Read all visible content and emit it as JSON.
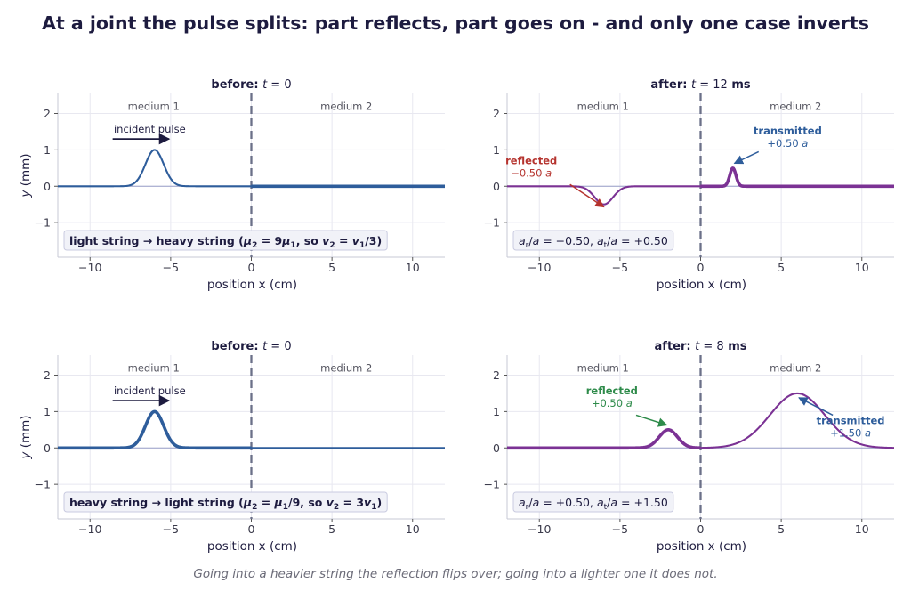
{
  "title": "At a joint the pulse splits:  part reflects, part goes on - and only one case inverts",
  "caption": "Going into a heavier string the reflection flips over;  going into a lighter one it does not.",
  "colors": {
    "incident": "#2e5d9b",
    "pulse_after": "#7b3294",
    "reflected_inverted": "#b5332e",
    "reflected_upright": "#2e8b4a",
    "transmitted": "#2e5d9b",
    "joint": "#6b7088",
    "grid": "#e8e8f0",
    "baseline": "#9aa0c8",
    "box_bg": "#f1f2f8",
    "box_border": "#c9cbe0"
  },
  "chart_data": [
    {
      "id": "top-left",
      "type": "line",
      "title_bold": "before:",
      "title_math": "t = 0",
      "xlabel": "position  x  (cm)",
      "ylabel": "y  (mm)",
      "xlim": [
        -12,
        12
      ],
      "ylim": [
        -1.95,
        2.55
      ],
      "xticks": [
        -10,
        -5,
        0,
        5,
        10
      ],
      "yticks": [
        -1,
        0,
        1,
        2
      ],
      "tick_labels_x": [
        "−10",
        "−5",
        "0",
        "5",
        "10"
      ],
      "tick_labels_y": [
        "−1",
        "0",
        "1",
        "2"
      ],
      "grid": true,
      "joint_x": 0,
      "medium_labels": [
        {
          "text": "medium 1",
          "x": -6
        },
        {
          "text": "medium 2",
          "x": 6
        }
      ],
      "string_widths": {
        "left": "thin",
        "right": "thick"
      },
      "series": [
        {
          "kind": "pulse",
          "center": -6,
          "amplitude": 1.0,
          "width": 0.8,
          "color": "incident"
        }
      ],
      "annotations": [
        {
          "text": "incident pulse",
          "x": -6.3,
          "y": 1.57,
          "arrow_from": [
            -8.6,
            1.3
          ],
          "arrow_to": [
            -5.1,
            1.3
          ]
        }
      ],
      "info_box": {
        "parts": [
          {
            "t": "light string  →  heavy string   (",
            "s": "b"
          },
          {
            "t": "μ",
            "s": "bi"
          },
          {
            "t": "2",
            "s": "sub"
          },
          {
            "t": " = 9",
            "s": "b"
          },
          {
            "t": "μ",
            "s": "bi"
          },
          {
            "t": "1",
            "s": "sub"
          },
          {
            "t": ", so ",
            "s": "b"
          },
          {
            "t": "v",
            "s": "bi"
          },
          {
            "t": "2",
            "s": "sub"
          },
          {
            "t": " = ",
            "s": "b"
          },
          {
            "t": "v",
            "s": "bi"
          },
          {
            "t": "1",
            "s": "sub"
          },
          {
            "t": "/3)",
            "s": "b"
          }
        ]
      }
    },
    {
      "id": "top-right",
      "type": "line",
      "title_bold": "after:",
      "title_math": "t = 12",
      "title_suffix": "ms",
      "xlabel": "position  x  (cm)",
      "ylabel": "",
      "xlim": [
        -12,
        12
      ],
      "ylim": [
        -1.95,
        2.55
      ],
      "xticks": [
        -10,
        -5,
        0,
        5,
        10
      ],
      "yticks": [
        -1,
        0,
        1,
        2
      ],
      "tick_labels_x": [
        "−10",
        "−5",
        "0",
        "5",
        "10"
      ],
      "tick_labels_y": [
        "−1",
        "0",
        "1",
        "2"
      ],
      "grid": true,
      "joint_x": 0,
      "medium_labels": [
        {
          "text": "medium 1",
          "x": -6
        },
        {
          "text": "medium 2",
          "x": 6
        }
      ],
      "string_widths": {
        "left": "thin",
        "right": "thick"
      },
      "series": [
        {
          "kind": "pulse",
          "center": -6,
          "amplitude": -0.5,
          "width": 0.8,
          "color": "pulse_after",
          "region": "left"
        },
        {
          "kind": "pulse",
          "center": 2,
          "amplitude": 0.5,
          "width": 0.27,
          "color": "pulse_after",
          "region": "right"
        }
      ],
      "annotations": [
        {
          "title": "reflected",
          "value": "−0.50 ",
          "value_unit": "a",
          "x": -10.5,
          "y": 0.6,
          "color": "reflected_inverted",
          "arrow_from": [
            -8.1,
            0.05
          ],
          "arrow_to": [
            -6.0,
            -0.57
          ]
        },
        {
          "title": "transmitted",
          "value": "+0.50 ",
          "value_unit": "a",
          "x": 5.4,
          "y": 1.43,
          "color": "transmitted",
          "arrow_from": [
            3.6,
            0.95
          ],
          "arrow_to": [
            2.1,
            0.63
          ]
        }
      ],
      "info_box": {
        "parts": [
          {
            "t": "a",
            "s": "i"
          },
          {
            "t": "r",
            "s": "sub"
          },
          {
            "t": "/",
            "s": "n"
          },
          {
            "t": "a",
            "s": "i"
          },
          {
            "t": " = −0.50,      ",
            "s": "n"
          },
          {
            "t": "a",
            "s": "i"
          },
          {
            "t": "t",
            "s": "sub"
          },
          {
            "t": "/",
            "s": "n"
          },
          {
            "t": "a",
            "s": "i"
          },
          {
            "t": " = +0.50",
            "s": "n"
          }
        ]
      }
    },
    {
      "id": "bottom-left",
      "type": "line",
      "title_bold": "before:",
      "title_math": "t = 0",
      "xlabel": "position  x  (cm)",
      "ylabel": "y  (mm)",
      "xlim": [
        -12,
        12
      ],
      "ylim": [
        -1.95,
        2.55
      ],
      "xticks": [
        -10,
        -5,
        0,
        5,
        10
      ],
      "yticks": [
        -1,
        0,
        1,
        2
      ],
      "tick_labels_x": [
        "−10",
        "−5",
        "0",
        "5",
        "10"
      ],
      "tick_labels_y": [
        "−1",
        "0",
        "1",
        "2"
      ],
      "grid": true,
      "joint_x": 0,
      "medium_labels": [
        {
          "text": "medium 1",
          "x": -6
        },
        {
          "text": "medium 2",
          "x": 6
        }
      ],
      "string_widths": {
        "left": "thick",
        "right": "thin"
      },
      "series": [
        {
          "kind": "pulse",
          "center": -6,
          "amplitude": 1.0,
          "width": 0.8,
          "color": "incident"
        }
      ],
      "annotations": [
        {
          "text": "incident pulse",
          "x": -6.3,
          "y": 1.57,
          "arrow_from": [
            -8.6,
            1.3
          ],
          "arrow_to": [
            -5.1,
            1.3
          ]
        }
      ],
      "info_box": {
        "parts": [
          {
            "t": "heavy string  →  light string   (",
            "s": "b"
          },
          {
            "t": "μ",
            "s": "bi"
          },
          {
            "t": "2",
            "s": "sub"
          },
          {
            "t": " = ",
            "s": "b"
          },
          {
            "t": "μ",
            "s": "bi"
          },
          {
            "t": "1",
            "s": "sub"
          },
          {
            "t": "/9, so ",
            "s": "b"
          },
          {
            "t": "v",
            "s": "bi"
          },
          {
            "t": "2",
            "s": "sub"
          },
          {
            "t": " = 3",
            "s": "b"
          },
          {
            "t": "v",
            "s": "bi"
          },
          {
            "t": "1",
            "s": "sub"
          },
          {
            "t": ")",
            "s": "b"
          }
        ]
      }
    },
    {
      "id": "bottom-right",
      "type": "line",
      "title_bold": "after:",
      "title_math": "t = 8",
      "title_suffix": "ms",
      "xlabel": "position  x  (cm)",
      "ylabel": "",
      "xlim": [
        -12,
        12
      ],
      "ylim": [
        -1.95,
        2.55
      ],
      "xticks": [
        -10,
        -5,
        0,
        5,
        10
      ],
      "yticks": [
        -1,
        0,
        1,
        2
      ],
      "tick_labels_x": [
        "−10",
        "−5",
        "0",
        "5",
        "10"
      ],
      "tick_labels_y": [
        "−1",
        "0",
        "1",
        "2"
      ],
      "grid": true,
      "joint_x": 0,
      "medium_labels": [
        {
          "text": "medium 1",
          "x": -6
        },
        {
          "text": "medium 2",
          "x": 6
        }
      ],
      "string_widths": {
        "left": "thick",
        "right": "thin"
      },
      "series": [
        {
          "kind": "pulse",
          "center": -2,
          "amplitude": 0.5,
          "width": 0.8,
          "color": "pulse_after",
          "region": "left"
        },
        {
          "kind": "pulse",
          "center": 6,
          "amplitude": 1.5,
          "width": 2.4,
          "color": "pulse_after",
          "region": "right"
        }
      ],
      "annotations": [
        {
          "title": "reflected",
          "value": "+0.50 ",
          "value_unit": "a",
          "x": -5.5,
          "y": 1.48,
          "color": "reflected_upright",
          "arrow_from": [
            -4.0,
            0.9
          ],
          "arrow_to": [
            -2.1,
            0.63
          ]
        },
        {
          "title": "transmitted",
          "value": "+1.50 ",
          "value_unit": "a",
          "x": 9.3,
          "y": 0.65,
          "color": "transmitted",
          "arrow_from": [
            8.2,
            0.9
          ],
          "arrow_to": [
            6.1,
            1.38
          ]
        }
      ],
      "info_box": {
        "parts": [
          {
            "t": "a",
            "s": "i"
          },
          {
            "t": "r",
            "s": "sub"
          },
          {
            "t": "/",
            "s": "n"
          },
          {
            "t": "a",
            "s": "i"
          },
          {
            "t": " = +0.50,      ",
            "s": "n"
          },
          {
            "t": "a",
            "s": "i"
          },
          {
            "t": "t",
            "s": "sub"
          },
          {
            "t": "/",
            "s": "n"
          },
          {
            "t": "a",
            "s": "i"
          },
          {
            "t": " = +1.50",
            "s": "n"
          }
        ]
      }
    }
  ]
}
